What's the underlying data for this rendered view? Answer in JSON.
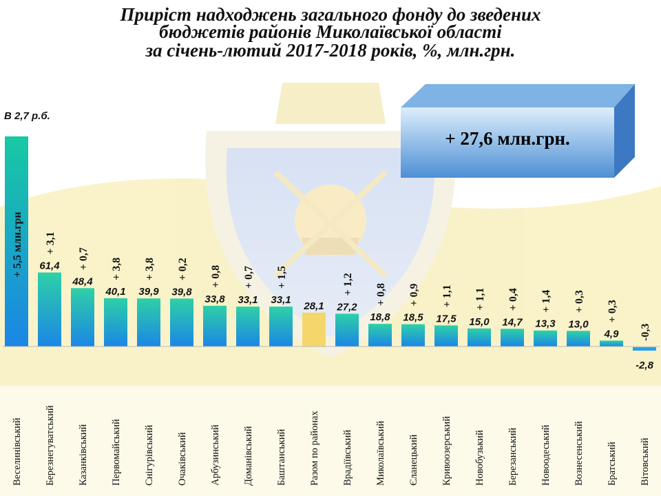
{
  "title_lines": [
    "Приріст надходжень загального фонду до зведених",
    "бюджетів районів Миколаївської області",
    "за січень-лютий 2017-2018 років, %, млн.грн."
  ],
  "corner_note": "В 2,7 р.б.",
  "total_label": "+ 27,6 млн.грн.",
  "colors": {
    "bar_top": "#2ed0a6",
    "bar_bottom": "#1b86e6",
    "highlight_first_top": "#18c9a3",
    "highlight_total": "#f5d66b",
    "negative_bar": "#27a1e8",
    "box_front_top": "#ddeefc",
    "box_front_bottom": "#4d8fd4"
  },
  "chart_data": {
    "type": "bar",
    "title": "Приріст надходжень загального фонду до зведених бюджетів районів Миколаївської області за січень-лютий 2017-2018 років, %, млн.грн.",
    "categories": [
      "Веселинівський",
      "Березнегуватський",
      "Казанківський",
      "Первомайський",
      "Снігурівський",
      "Очаківський",
      "Арбузинський",
      "Доманівський",
      "Баштанський",
      "Разом по районах",
      "Врадіївський",
      "Миколаївський",
      "Єланецький",
      "Кривоозерський",
      "Новобузький",
      "Березанський",
      "Новоодеський",
      "Вознесенський",
      "Братський",
      "Вітовський"
    ],
    "series": [
      {
        "values": [
          null,
          61.4,
          48.4,
          40.1,
          39.9,
          39.8,
          33.8,
          33.1,
          33.1,
          28.1,
          27.2,
          18.8,
          18.5,
          17.5,
          15.0,
          14.7,
          13.3,
          13.0,
          4.9,
          -2.8
        ],
        "value_labels": [
          "",
          "61,4",
          "48,4",
          "40,1",
          "39,9",
          "39,8",
          "33,8",
          "33,1",
          "33,1",
          "28,1",
          "27,2",
          "18,8",
          "18,5",
          "17,5",
          "15,0",
          "14,7",
          "13,3",
          "13,0",
          "4,9",
          "-2,8"
        ]
      },
      {
        "name": "млн.грн",
        "values": [
          5.5,
          3.1,
          0.7,
          3.8,
          3.8,
          0.2,
          0.8,
          0.7,
          1.5,
          null,
          1.2,
          0.8,
          0.9,
          1.1,
          1.1,
          0.4,
          1.4,
          0.3,
          0.3,
          -0.3
        ],
        "value_labels": [
          "+ 5,5 млн.грн",
          "+ 3,1",
          "+ 0,7",
          "+ 3,8",
          "+ 3,8",
          "+ 0,2",
          "+ 0,8",
          "+ 0,7",
          "+ 1,5",
          "",
          "+ 1,2",
          "+ 0,8",
          "+ 0,9",
          "+ 1,1",
          "+ 1,1",
          "+ 0,4",
          "+ 1,4",
          "+ 0,3",
          "+ 0,3",
          "-0,3"
        ]
      }
    ],
    "ylim": [
      -5,
      115
    ],
    "first_bar_value_beyond_axis": 2.7,
    "highlight_category": "Разом по районах",
    "grid": false,
    "legend": "none"
  }
}
